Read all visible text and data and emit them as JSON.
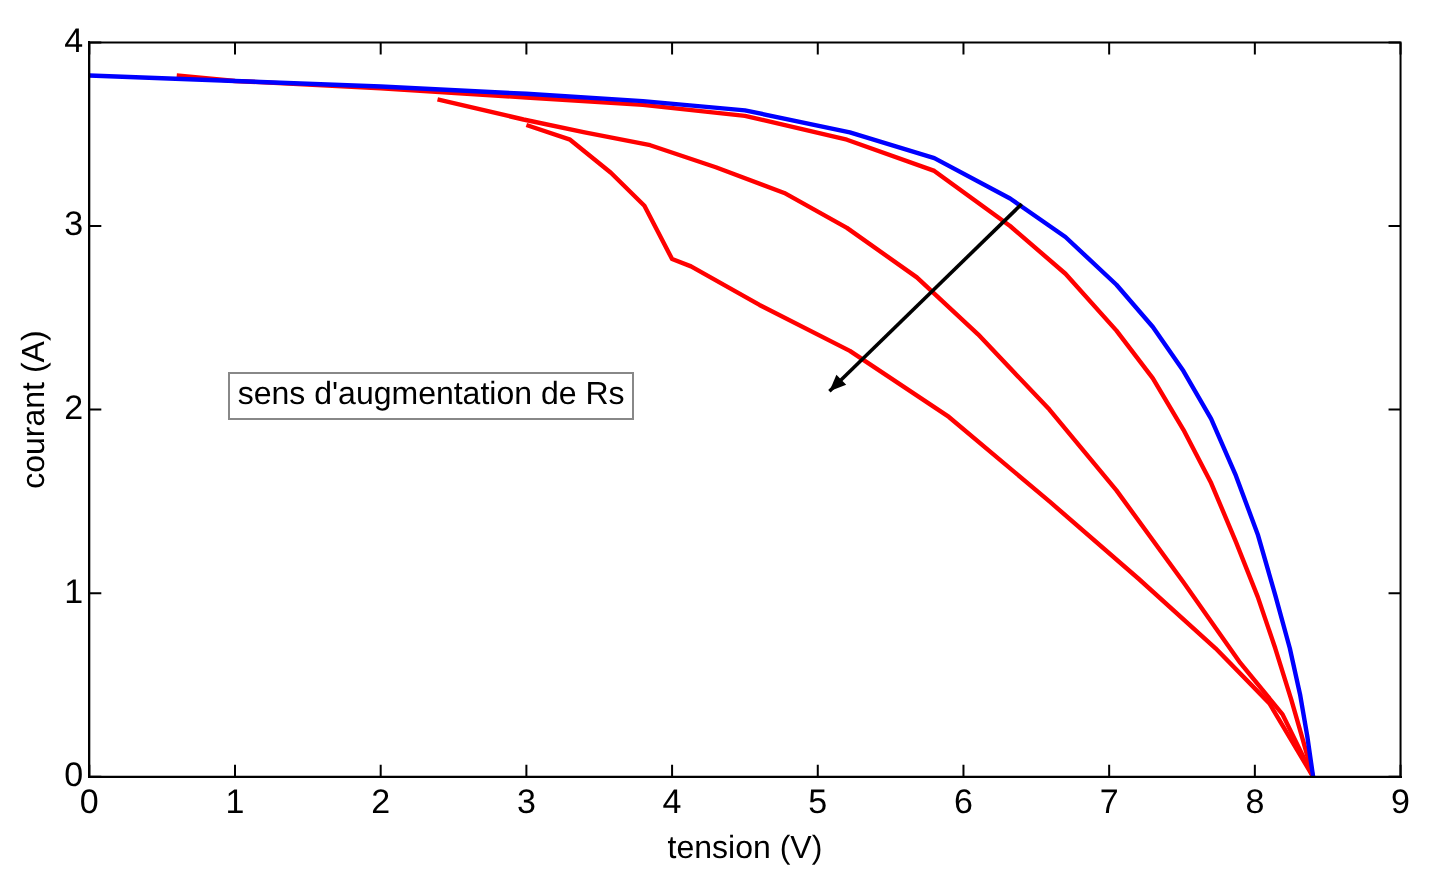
{
  "chart_data": {
    "type": "line",
    "xlabel": "tension (V)",
    "ylabel": "courant (A)",
    "annotations": [
      "sens d'augmentation de Rs"
    ],
    "xlim": [
      0,
      9
    ],
    "xticks": [
      0,
      1,
      2,
      3,
      4,
      5,
      6,
      7,
      8,
      9
    ],
    "ylim": [
      0,
      4
    ],
    "yticks": [
      0,
      1,
      2,
      3,
      4
    ],
    "grid": false,
    "legend": false,
    "marker": "none",
    "line_style": "solid",
    "series": [
      {
        "color": "#0000ff",
        "x": [
          0,
          1,
          2,
          3,
          3.8,
          4.5,
          5.22,
          5.8,
          6.32,
          6.7,
          7.05,
          7.3,
          7.51,
          7.7,
          7.87,
          8.02,
          8.14,
          8.24,
          8.31,
          8.36,
          8.4
        ],
        "values": [
          3.82,
          3.79,
          3.76,
          3.72,
          3.68,
          3.63,
          3.51,
          3.37,
          3.15,
          2.94,
          2.68,
          2.45,
          2.21,
          1.95,
          1.64,
          1.32,
          0.99,
          0.7,
          0.45,
          0.22,
          0
        ]
      },
      {
        "color": "#ff0000",
        "x": [
          0.6,
          1,
          2,
          3,
          3.8,
          4.5,
          5.2,
          5.8,
          6.32,
          6.7,
          7.05,
          7.3,
          7.51,
          7.7,
          7.87,
          8.02,
          8.14,
          8.25,
          8.33,
          8.4
        ],
        "values": [
          3.82,
          3.79,
          3.75,
          3.7,
          3.66,
          3.6,
          3.47,
          3.3,
          3.0,
          2.74,
          2.43,
          2.17,
          1.89,
          1.6,
          1.28,
          0.98,
          0.7,
          0.42,
          0.2,
          0
        ]
      },
      {
        "color": "#ff0000",
        "x": [
          2.39,
          2.98,
          3.4,
          3.85,
          4.3,
          4.77,
          5.2,
          5.68,
          6.1,
          6.59,
          7.05,
          7.51,
          7.9,
          8.19,
          8.4
        ],
        "values": [
          3.69,
          3.58,
          3.51,
          3.44,
          3.32,
          3.18,
          2.99,
          2.72,
          2.41,
          2.0,
          1.56,
          1.06,
          0.62,
          0.34,
          0
        ]
      },
      {
        "color": "#ff0000",
        "x": [
          3.0,
          3.3,
          3.58,
          3.81,
          4.0,
          4.13,
          4.6,
          5.22,
          5.9,
          6.59,
          7.2,
          7.73,
          8.1,
          8.4
        ],
        "values": [
          3.55,
          3.47,
          3.29,
          3.11,
          2.82,
          2.78,
          2.57,
          2.32,
          1.96,
          1.5,
          1.08,
          0.7,
          0.4,
          0
        ]
      }
    ]
  }
}
